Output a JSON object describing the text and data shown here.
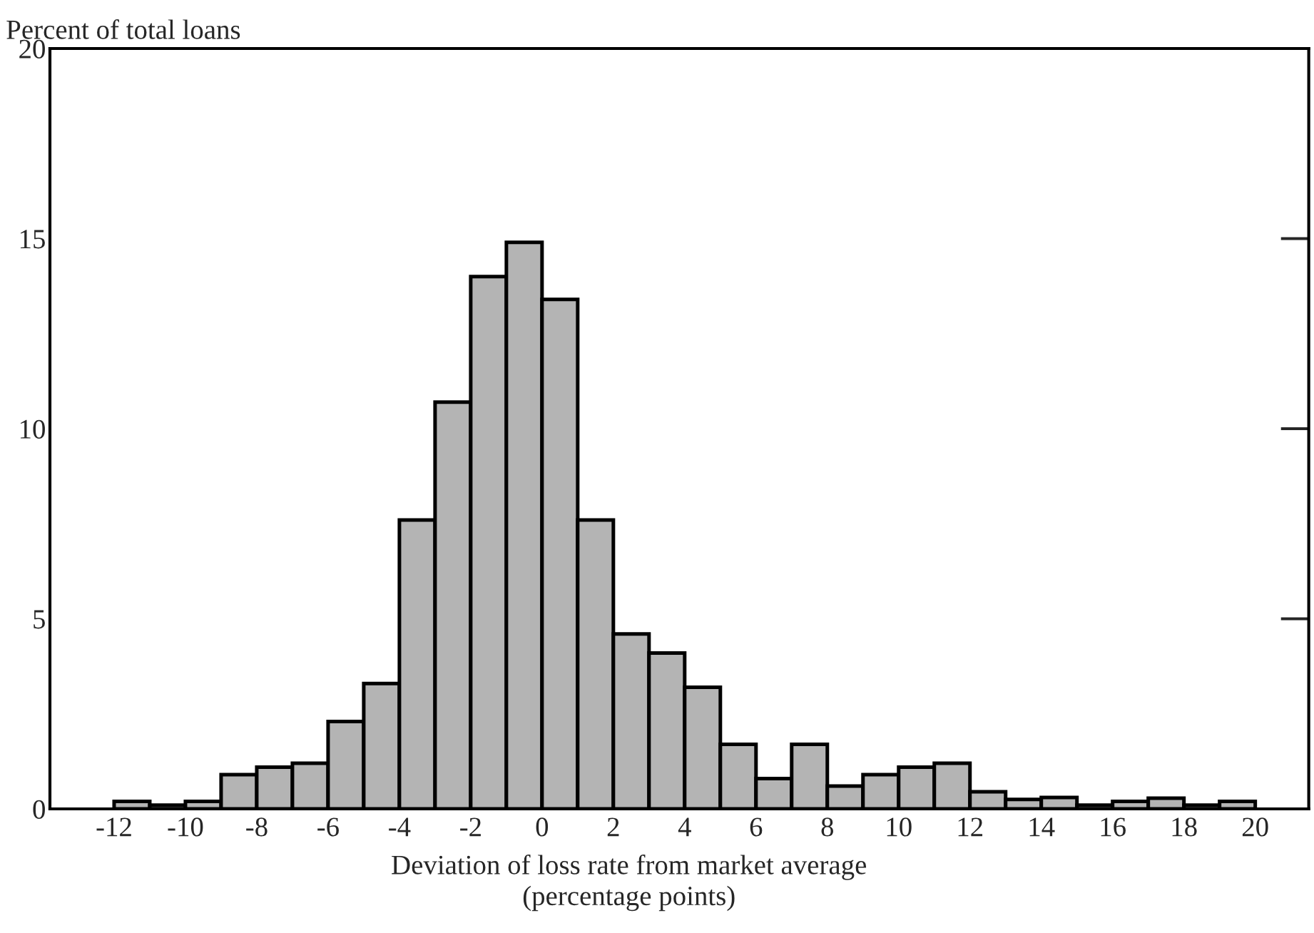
{
  "chart_data": {
    "type": "histogram",
    "ylabel": "Percent of total loans",
    "xlabel": "Deviation of loss rate from market average\n(percentage points)",
    "bins": [
      -12,
      -11,
      -10,
      -9,
      -8,
      -7,
      -6,
      -5,
      -4,
      -3,
      -2,
      -1,
      0,
      1,
      2,
      3,
      4,
      5,
      6,
      7,
      8,
      9,
      10,
      11,
      12,
      13,
      14,
      15,
      16,
      17,
      18,
      19,
      20
    ],
    "values": [
      0.2,
      0.1,
      0.2,
      0.9,
      1.1,
      1.2,
      2.3,
      3.3,
      7.6,
      10.7,
      14.0,
      14.9,
      13.4,
      7.6,
      4.6,
      4.1,
      3.2,
      1.7,
      0.8,
      1.7,
      0.6,
      0.9,
      1.1,
      1.2,
      0.45,
      0.25,
      0.3,
      0.1,
      0.2,
      0.28,
      0.1,
      0.2
    ],
    "color": "#b4b4b4",
    "xlim": [
      -13.8,
      21.5
    ],
    "xticks": [
      -12,
      -10,
      -8,
      -6,
      -4,
      -2,
      0,
      2,
      4,
      6,
      8,
      10,
      12,
      14,
      16,
      18,
      20
    ],
    "ylim": [
      0,
      20
    ],
    "yticks": [
      0,
      5,
      10,
      15,
      20
    ],
    "grid": false
  }
}
